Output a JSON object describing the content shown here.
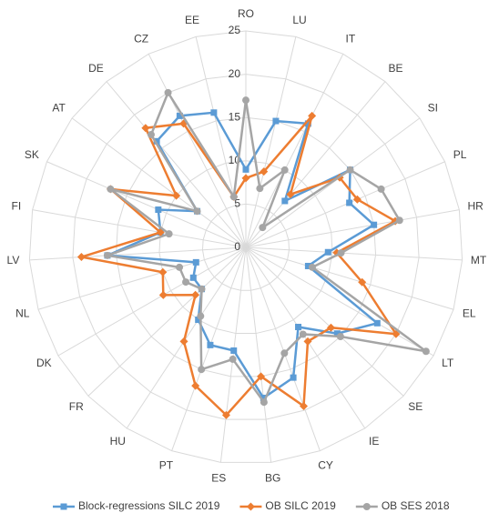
{
  "chart_data": {
    "type": "radar",
    "categories": [
      "RO",
      "LU",
      "IT",
      "BE",
      "SI",
      "PL",
      "HR",
      "MT",
      "EL",
      "LT",
      "SE",
      "IE",
      "CY",
      "BG",
      "ES",
      "PT",
      "HU",
      "FR",
      "DK",
      "NL",
      "LV",
      "FI",
      "SK",
      "AT",
      "DE",
      "CZ",
      "EE"
    ],
    "ylim": [
      0,
      25
    ],
    "yticks": [
      0,
      5,
      10,
      15,
      20,
      25
    ],
    "grid": true,
    "legend": "bottom",
    "series": [
      {
        "name": "Block-regressions SILC 2019",
        "color": "#5b9bd5",
        "marker": "square",
        "values": [
          9,
          15,
          16,
          7,
          15,
          13,
          15,
          9.5,
          7.5,
          17.5,
          14.5,
          11,
          16,
          17.5,
          12,
          12,
          10,
          7,
          7,
          6,
          16,
          10,
          11,
          7,
          16,
          17,
          16
        ]
      },
      {
        "name": "OB SILC 2019",
        "color": "#ed7d31",
        "marker": "diamond",
        "values": [
          8,
          9,
          17,
          8,
          13.5,
          14,
          17.5,
          10.5,
          14,
          20,
          13.5,
          13,
          19.5,
          15,
          19.5,
          17,
          13,
          8,
          11,
          10,
          19,
          10,
          17,
          10,
          18,
          16,
          6
        ]
      },
      {
        "name": "OB SES 2018",
        "color": "#a5a5a5",
        "marker": "circle",
        "values": [
          17,
          7,
          10,
          3,
          15,
          17,
          18,
          11,
          8,
          24,
          15,
          12,
          13,
          18,
          13,
          15,
          9.5,
          7,
          8,
          8,
          16,
          9,
          17,
          7,
          17,
          20,
          6
        ]
      }
    ]
  }
}
